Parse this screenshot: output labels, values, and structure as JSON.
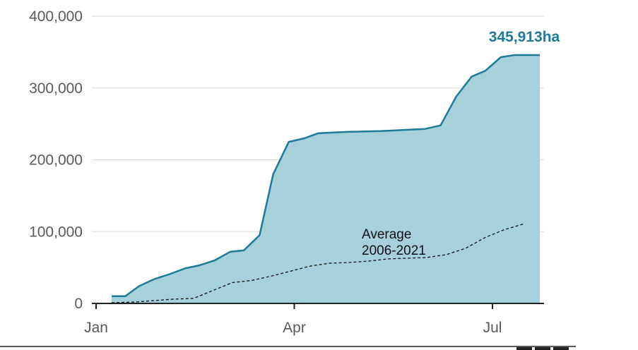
{
  "chart_data": {
    "type": "area",
    "x_ticks": [
      "Jan",
      "Apr",
      "Jul"
    ],
    "y_ticks": [
      "0",
      "100,000",
      "200,000",
      "300,000",
      "400,000"
    ],
    "ylim": [
      0,
      400000
    ],
    "xlim_days": [
      0,
      220
    ],
    "grid": true,
    "end_label": "345,913ha",
    "annotation": [
      "Average",
      "2006-2021"
    ],
    "colors": {
      "fill": "#a6d0dc",
      "line": "#1e7a96",
      "average": "#111111",
      "grid": "#d9d9d9",
      "axis": "#222222"
    },
    "series": [
      {
        "style": "area",
        "x": [
          8,
          15,
          22,
          30,
          38,
          46,
          53,
          61,
          69,
          76,
          84,
          91,
          99,
          107,
          114,
          122,
          130,
          138,
          146,
          154,
          161,
          169,
          177,
          185,
          193,
          200,
          208,
          215,
          222,
          228
        ],
        "y": [
          10000,
          10000,
          24000,
          34000,
          41000,
          49000,
          53000,
          60000,
          72000,
          74000,
          95000,
          180000,
          225000,
          230000,
          237000,
          238000,
          239000,
          239500,
          240000,
          241000,
          242000,
          243000,
          248000,
          288000,
          316000,
          324000,
          343000,
          345913,
          345913,
          345913
        ]
      },
      {
        "style": "dashed",
        "x": [
          8,
          20,
          30,
          40,
          50,
          60,
          70,
          80,
          90,
          100,
          110,
          120,
          130,
          140,
          150,
          160,
          170,
          180,
          190,
          200,
          210,
          220
        ],
        "y": [
          1000,
          2000,
          4000,
          6000,
          7000,
          18000,
          29000,
          32000,
          38000,
          45000,
          52000,
          56000,
          57000,
          59000,
          62000,
          63000,
          64000,
          68000,
          77000,
          92000,
          103000,
          111000
        ]
      }
    ]
  }
}
